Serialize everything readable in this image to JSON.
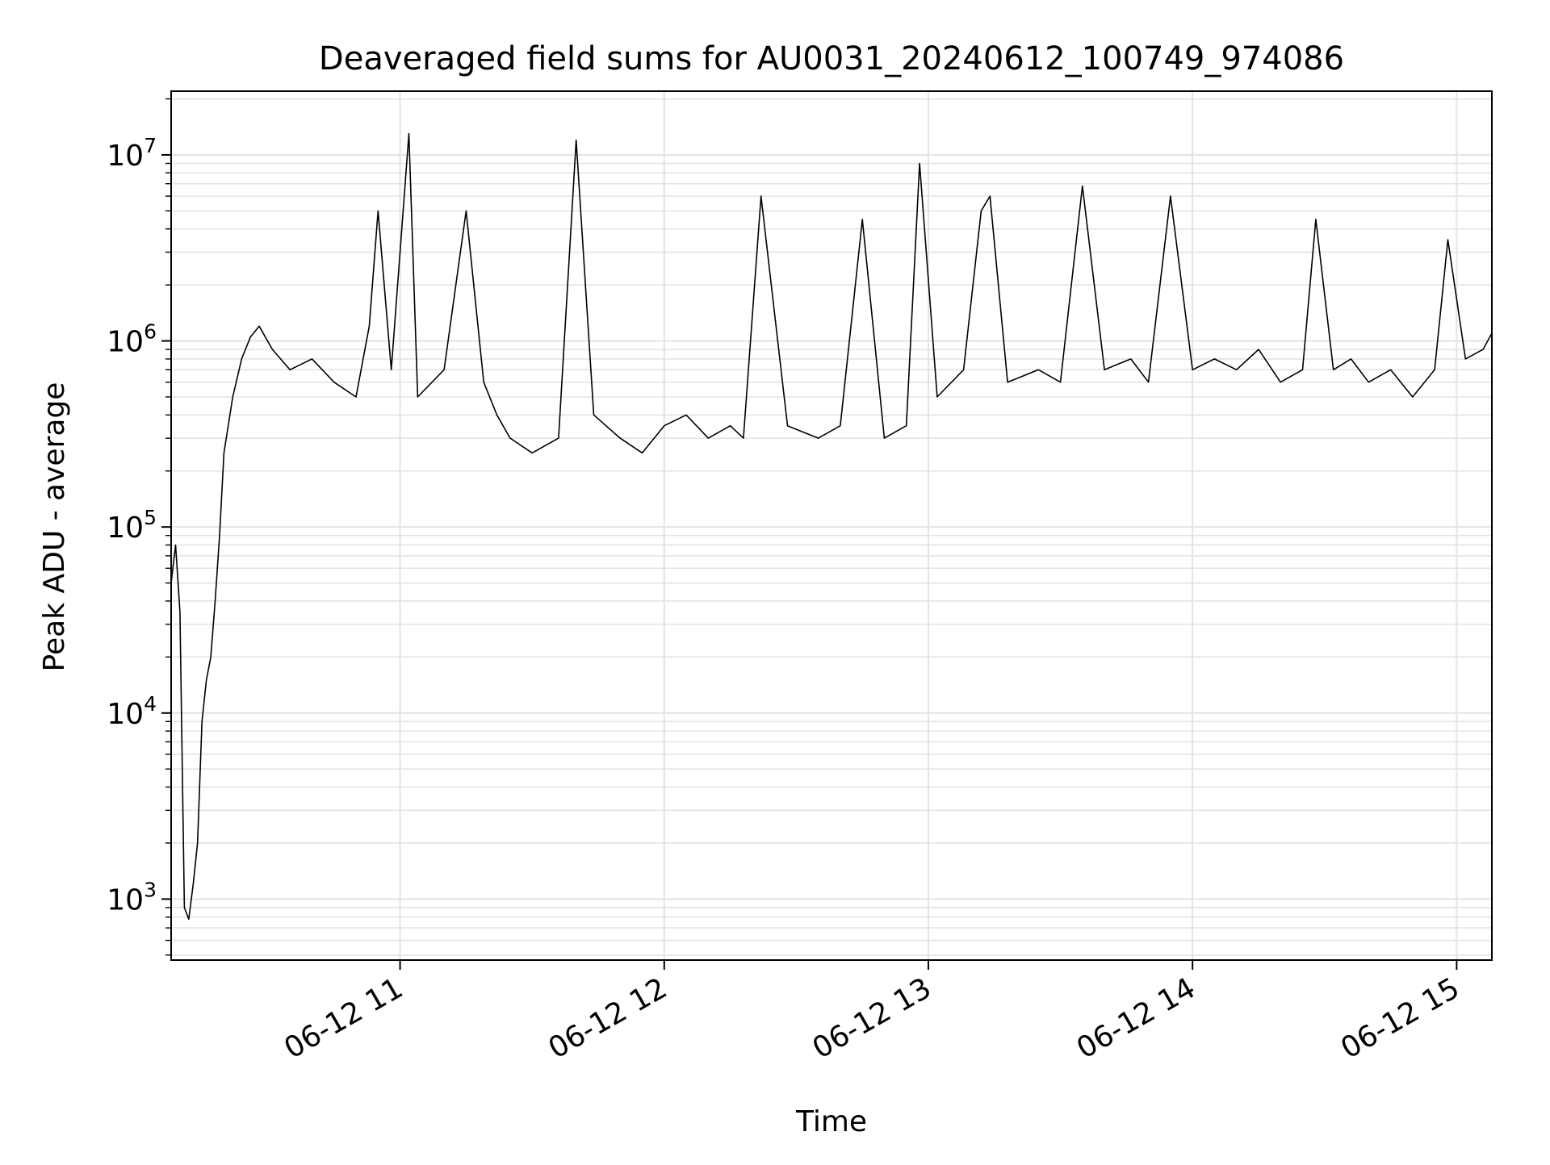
{
  "chart_data": {
    "type": "line",
    "title": "Deaveraged field sums for AU0031_20240612_100749_974086",
    "xlabel": "Time",
    "ylabel": "Peak ADU - average",
    "y_scale": "log",
    "ylim": [
      470,
      22000000
    ],
    "xlim": [
      "2024-06-12 10:08",
      "2024-06-12 15:08"
    ],
    "grid": "major and minor, light gray",
    "legend": "none",
    "line_color": "#000000",
    "grid_color": "#e3e3e3",
    "x_ticks": [
      {
        "label": "06-12 11",
        "value": "2024-06-12 11:00"
      },
      {
        "label": "06-12 12",
        "value": "2024-06-12 12:00"
      },
      {
        "label": "06-12 13",
        "value": "2024-06-12 13:00"
      },
      {
        "label": "06-12 14",
        "value": "2024-06-12 14:00"
      },
      {
        "label": "06-12 15",
        "value": "2024-06-12 15:00"
      }
    ],
    "y_ticks": [
      {
        "base": "10",
        "exp": "3",
        "value": 1000
      },
      {
        "base": "10",
        "exp": "4",
        "value": 10000
      },
      {
        "base": "10",
        "exp": "5",
        "value": 100000
      },
      {
        "base": "10",
        "exp": "6",
        "value": 1000000
      },
      {
        "base": "10",
        "exp": "7",
        "value": 10000000
      }
    ],
    "series": [
      {
        "x": [
          "2024-06-12 10:08",
          "2024-06-12 10:09",
          "2024-06-12 10:10",
          "2024-06-12 10:11",
          "2024-06-12 10:12",
          "2024-06-12 10:13",
          "2024-06-12 10:14",
          "2024-06-12 10:15",
          "2024-06-12 10:16",
          "2024-06-12 10:17",
          "2024-06-12 10:18",
          "2024-06-12 10:19",
          "2024-06-12 10:20",
          "2024-06-12 10:22",
          "2024-06-12 10:24",
          "2024-06-12 10:26",
          "2024-06-12 10:28",
          "2024-06-12 10:31",
          "2024-06-12 10:35",
          "2024-06-12 10:40",
          "2024-06-12 10:45",
          "2024-06-12 10:50",
          "2024-06-12 10:53",
          "2024-06-12 10:55",
          "2024-06-12 10:58",
          "2024-06-12 11:02",
          "2024-06-12 11:04",
          "2024-06-12 11:10",
          "2024-06-12 11:15",
          "2024-06-12 11:19",
          "2024-06-12 11:22",
          "2024-06-12 11:25",
          "2024-06-12 11:30",
          "2024-06-12 11:36",
          "2024-06-12 11:40",
          "2024-06-12 11:44",
          "2024-06-12 11:50",
          "2024-06-12 11:55",
          "2024-06-12 12:00",
          "2024-06-12 12:05",
          "2024-06-12 12:10",
          "2024-06-12 12:15",
          "2024-06-12 12:18",
          "2024-06-12 12:22",
          "2024-06-12 12:28",
          "2024-06-12 12:35",
          "2024-06-12 12:40",
          "2024-06-12 12:45",
          "2024-06-12 12:50",
          "2024-06-12 12:55",
          "2024-06-12 12:58",
          "2024-06-12 13:02",
          "2024-06-12 13:08",
          "2024-06-12 13:12",
          "2024-06-12 13:14",
          "2024-06-12 13:18",
          "2024-06-12 13:25",
          "2024-06-12 13:30",
          "2024-06-12 13:35",
          "2024-06-12 13:40",
          "2024-06-12 13:46",
          "2024-06-12 13:50",
          "2024-06-12 13:55",
          "2024-06-12 14:00",
          "2024-06-12 14:05",
          "2024-06-12 14:10",
          "2024-06-12 14:15",
          "2024-06-12 14:20",
          "2024-06-12 14:25",
          "2024-06-12 14:28",
          "2024-06-12 14:32",
          "2024-06-12 14:36",
          "2024-06-12 14:40",
          "2024-06-12 14:45",
          "2024-06-12 14:50",
          "2024-06-12 14:55",
          "2024-06-12 14:58",
          "2024-06-12 15:02",
          "2024-06-12 15:06",
          "2024-06-12 15:08"
        ],
        "y": [
          50000,
          80000,
          35000,
          900,
          780,
          1200,
          2000,
          9000,
          15000,
          20000,
          40000,
          90000,
          250000,
          500000,
          800000,
          1050000,
          1200000,
          900000,
          700000,
          800000,
          600000,
          500000,
          1200000,
          5000000,
          700000,
          13000000,
          500000,
          700000,
          5000000,
          600000,
          400000,
          300000,
          250000,
          300000,
          12000000,
          400000,
          300000,
          250000,
          350000,
          400000,
          300000,
          350000,
          300000,
          6000000,
          350000,
          300000,
          350000,
          4500000,
          300000,
          350000,
          9000000,
          500000,
          700000,
          5000000,
          6000000,
          600000,
          700000,
          600000,
          6800000,
          700000,
          800000,
          600000,
          6000000,
          700000,
          800000,
          700000,
          900000,
          600000,
          700000,
          4500000,
          700000,
          800000,
          600000,
          700000,
          500000,
          700000,
          3500000,
          800000,
          900000,
          1100000
        ]
      }
    ]
  }
}
